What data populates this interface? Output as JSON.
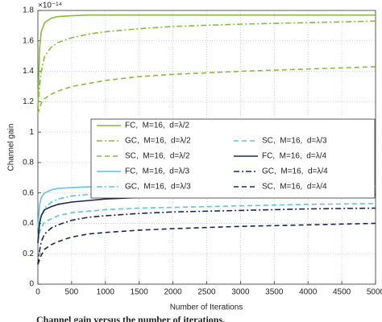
{
  "chart_data": {
    "type": "line",
    "y_exponent": "×10⁻¹⁴",
    "xlabel": "Number of Iterations",
    "ylabel": "Channel gain",
    "caption": "Channel gain versus the number of iterations.",
    "x": [
      0,
      25,
      50,
      100,
      200,
      300,
      500,
      750,
      1000,
      1500,
      2000,
      3000,
      4000,
      5000
    ],
    "xlim": [
      0,
      5000
    ],
    "xticks": [
      0,
      500,
      1000,
      1500,
      2000,
      2500,
      3000,
      3500,
      4000,
      4500,
      5000
    ],
    "ylim": [
      0,
      1.8
    ],
    "yticks": [
      0,
      0.2,
      0.4,
      0.6,
      0.8,
      1,
      1.2,
      1.4,
      1.6,
      1.8
    ],
    "grid": true,
    "series": [
      {
        "name": "FC,  M=16,  d=λ/2",
        "color": "#86bc3a",
        "dash": "solid",
        "values": [
          1.15,
          1.55,
          1.66,
          1.72,
          1.75,
          1.76,
          1.765,
          1.77,
          1.77,
          1.77,
          1.77,
          1.77,
          1.77,
          1.77
        ]
      },
      {
        "name": "GC,  M=16,  d=λ/2",
        "color": "#86bc3a",
        "dash": "dashdot",
        "values": [
          1.15,
          1.3,
          1.4,
          1.5,
          1.56,
          1.59,
          1.62,
          1.645,
          1.66,
          1.68,
          1.695,
          1.71,
          1.72,
          1.73
        ]
      },
      {
        "name": "SC,  M=16,  d=λ/2",
        "color": "#86bc3a",
        "dash": "dashed",
        "values": [
          1.12,
          1.16,
          1.19,
          1.22,
          1.25,
          1.27,
          1.3,
          1.32,
          1.34,
          1.365,
          1.38,
          1.4,
          1.415,
          1.43
        ]
      },
      {
        "name": "FC,  M=16,  d=λ/3",
        "color": "#5ec3dc",
        "dash": "solid",
        "values": [
          0.37,
          0.52,
          0.57,
          0.6,
          0.62,
          0.63,
          0.635,
          0.64,
          0.64,
          0.642,
          0.643,
          0.644,
          0.645,
          0.645
        ]
      },
      {
        "name": "GC,  M=16,  d=λ/3",
        "color": "#5ec3dc",
        "dash": "dashdot",
        "values": [
          0.3,
          0.4,
          0.45,
          0.5,
          0.54,
          0.56,
          0.58,
          0.59,
          0.6,
          0.61,
          0.62,
          0.63,
          0.635,
          0.64
        ]
      },
      {
        "name": "SC,  M=16,  d=λ/3",
        "color": "#5ec3dc",
        "dash": "dashed",
        "values": [
          0.28,
          0.34,
          0.37,
          0.41,
          0.43,
          0.45,
          0.47,
          0.48,
          0.49,
          0.5,
          0.505,
          0.515,
          0.525,
          0.53
        ]
      },
      {
        "name": "FC,  M=16,  d=λ/4",
        "color": "#1e2556",
        "dash": "solid",
        "values": [
          0.27,
          0.4,
          0.45,
          0.49,
          0.51,
          0.525,
          0.54,
          0.55,
          0.56,
          0.57,
          0.575,
          0.58,
          0.585,
          0.59
        ]
      },
      {
        "name": "GC,  M=16,  d=λ/4",
        "color": "#1e2556",
        "dash": "dashdot",
        "values": [
          0.13,
          0.22,
          0.28,
          0.33,
          0.37,
          0.39,
          0.42,
          0.44,
          0.45,
          0.465,
          0.475,
          0.485,
          0.495,
          0.5
        ]
      },
      {
        "name": "SC,  M=16,  d=λ/4",
        "color": "#1e2556",
        "dash": "dashed",
        "values": [
          0.13,
          0.16,
          0.19,
          0.23,
          0.26,
          0.28,
          0.31,
          0.33,
          0.34,
          0.355,
          0.365,
          0.38,
          0.39,
          0.4
        ]
      }
    ]
  }
}
